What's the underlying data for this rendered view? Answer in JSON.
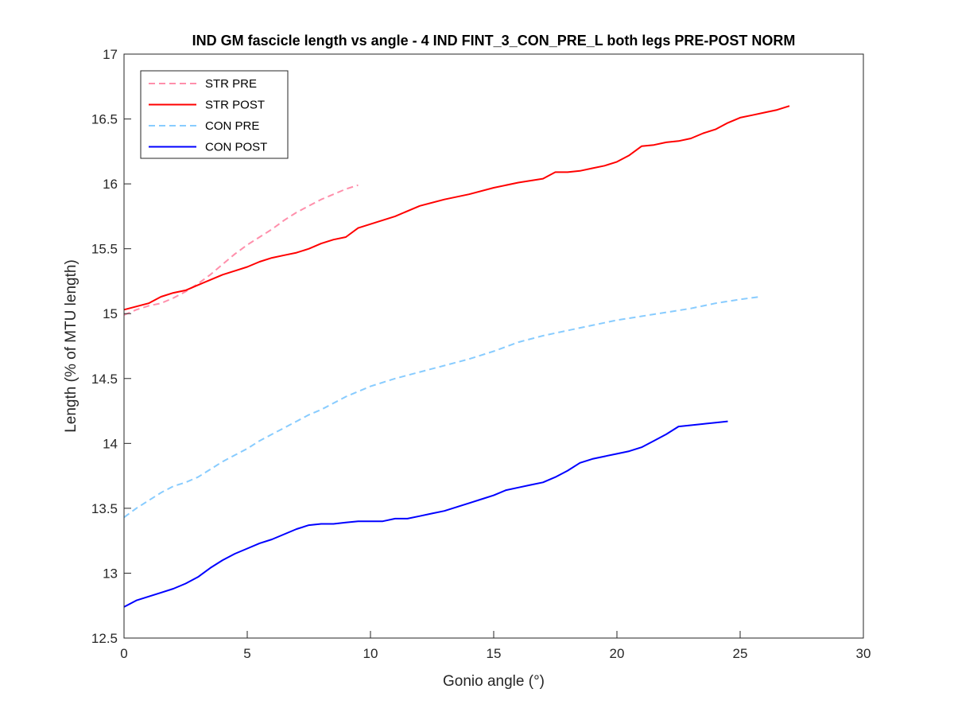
{
  "chart_data": {
    "type": "line",
    "title": "IND GM fascicle length vs angle - 4 IND FINT_3_CON_PRE_L both legs PRE-POST NORM",
    "xlabel": "Gonio angle (°)",
    "ylabel": "Length (% of MTU length)",
    "xlim": [
      0,
      30
    ],
    "ylim": [
      12.5,
      17
    ],
    "xticks": [
      "0",
      "5",
      "10",
      "15",
      "20",
      "25",
      "30"
    ],
    "yticks": [
      "12.5",
      "13",
      "13.5",
      "14",
      "14.5",
      "15",
      "15.5",
      "16",
      "16.5",
      "17"
    ],
    "grid": false,
    "legend_position": "top-left",
    "series": [
      {
        "name": "STR PRE",
        "color": "#FF8FAB",
        "dash": "dashed",
        "x": [
          0,
          0.5,
          1,
          1.5,
          2,
          2.5,
          3,
          3.5,
          4,
          4.5,
          5,
          5.5,
          6,
          6.5,
          7,
          7.5,
          8,
          8.5,
          9,
          9.5
        ],
        "y": [
          14.99,
          15.03,
          15.06,
          15.08,
          15.12,
          15.17,
          15.23,
          15.3,
          15.38,
          15.46,
          15.53,
          15.59,
          15.65,
          15.72,
          15.78,
          15.83,
          15.88,
          15.92,
          15.96,
          15.99
        ]
      },
      {
        "name": "STR POST",
        "color": "#FF0000",
        "dash": "solid",
        "x": [
          0,
          1,
          1.5,
          2,
          2.5,
          3,
          3.5,
          4,
          4.5,
          5,
          5.5,
          6,
          6.5,
          7,
          7.5,
          8,
          8.5,
          9,
          9.5,
          10,
          11,
          12,
          13,
          14,
          15,
          16,
          17,
          17.5,
          18,
          18.5,
          19,
          19.5,
          20,
          20.5,
          21,
          21.5,
          22,
          22.5,
          23,
          23.5,
          24,
          24.5,
          25,
          25.5,
          26,
          26.5,
          27
        ],
        "y": [
          15.03,
          15.08,
          15.13,
          15.16,
          15.18,
          15.22,
          15.26,
          15.3,
          15.33,
          15.36,
          15.4,
          15.43,
          15.45,
          15.47,
          15.5,
          15.54,
          15.57,
          15.59,
          15.66,
          15.69,
          15.75,
          15.83,
          15.88,
          15.92,
          15.97,
          16.01,
          16.04,
          16.09,
          16.09,
          16.1,
          16.12,
          16.14,
          16.17,
          16.22,
          16.29,
          16.3,
          16.32,
          16.33,
          16.35,
          16.39,
          16.42,
          16.47,
          16.51,
          16.53,
          16.55,
          16.57,
          16.6
        ]
      },
      {
        "name": "CON PRE",
        "color": "#88CCFF",
        "dash": "dashed",
        "x": [
          0,
          0.5,
          1,
          1.5,
          2,
          2.5,
          3,
          3.5,
          4,
          4.5,
          5,
          5.5,
          6,
          6.5,
          7,
          7.5,
          8,
          8.5,
          9,
          9.5,
          10,
          11,
          12,
          13,
          14,
          15,
          16,
          17,
          18,
          19,
          20,
          21,
          22,
          23,
          24,
          25,
          25.8
        ],
        "y": [
          13.43,
          13.5,
          13.56,
          13.62,
          13.67,
          13.7,
          13.74,
          13.8,
          13.86,
          13.91,
          13.96,
          14.02,
          14.07,
          14.12,
          14.17,
          14.22,
          14.26,
          14.31,
          14.36,
          14.4,
          14.44,
          14.5,
          14.55,
          14.6,
          14.65,
          14.71,
          14.78,
          14.83,
          14.87,
          14.91,
          14.95,
          14.98,
          15.01,
          15.04,
          15.08,
          15.11,
          15.13
        ]
      },
      {
        "name": "CON POST",
        "color": "#0000FF",
        "dash": "solid",
        "x": [
          0,
          0.5,
          1,
          1.5,
          2,
          2.5,
          3,
          3.5,
          4,
          4.5,
          5,
          5.5,
          6,
          6.5,
          7,
          7.5,
          8,
          8.5,
          9,
          9.5,
          10,
          10.5,
          11,
          11.5,
          12,
          12.5,
          13,
          13.5,
          14,
          14.5,
          15,
          15.5,
          16,
          16.5,
          17,
          17.5,
          18,
          18.5,
          19,
          19.5,
          20,
          20.5,
          21,
          21.5,
          22,
          22.5,
          23,
          23.5,
          24,
          24.5
        ],
        "y": [
          12.74,
          12.79,
          12.82,
          12.85,
          12.88,
          12.92,
          12.97,
          13.04,
          13.1,
          13.15,
          13.19,
          13.23,
          13.26,
          13.3,
          13.34,
          13.37,
          13.38,
          13.38,
          13.39,
          13.4,
          13.4,
          13.4,
          13.42,
          13.42,
          13.44,
          13.46,
          13.48,
          13.51,
          13.54,
          13.57,
          13.6,
          13.64,
          13.66,
          13.68,
          13.7,
          13.74,
          13.79,
          13.85,
          13.88,
          13.9,
          13.92,
          13.94,
          13.97,
          14.02,
          14.07,
          14.13,
          14.14,
          14.15,
          14.16,
          14.17
        ]
      }
    ]
  }
}
